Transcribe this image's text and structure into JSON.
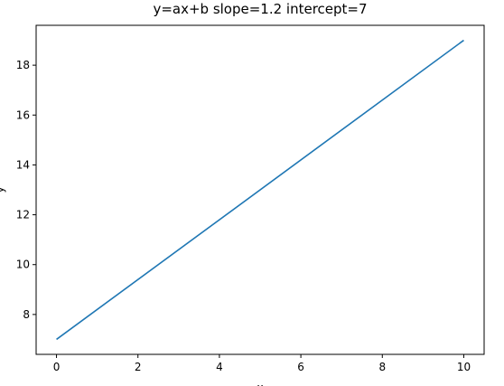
{
  "chart_data": {
    "type": "line",
    "title": "y=ax+b slope=1.2 intercept=7",
    "xlabel": "x",
    "ylabel": "y",
    "xlim": [
      -0.5,
      10.5
    ],
    "ylim": [
      6.4,
      19.6
    ],
    "x_ticks": [
      0,
      2,
      4,
      6,
      8,
      10
    ],
    "y_ticks": [
      8,
      10,
      12,
      14,
      16,
      18
    ],
    "grid": false,
    "series": [
      {
        "color": "#1f77b4",
        "x": [
          0,
          10
        ],
        "y": [
          7,
          19
        ]
      }
    ]
  }
}
